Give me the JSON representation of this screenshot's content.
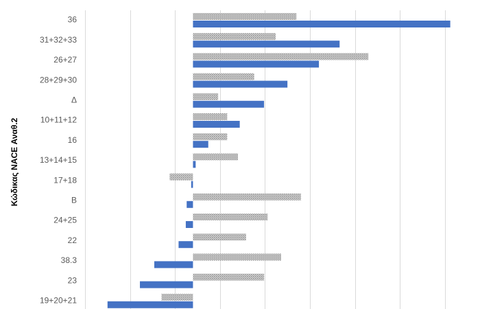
{
  "chart_data": {
    "type": "bar",
    "orientation": "horizontal",
    "ylabel": "Κώδικας NACE Αναθ.2",
    "categories": [
      "36",
      "31+32+33",
      "26+27",
      "28+29+30",
      "Δ",
      "10+11+12",
      "16",
      "13+14+15",
      "17+18",
      "Β",
      "24+25",
      "22",
      "38.3",
      "23",
      "19+20+21"
    ],
    "series": [
      {
        "pattern": "dotted",
        "color": "#a6a6a6",
        "values": [
          11.5,
          9.2,
          19.5,
          6.8,
          2.8,
          3.8,
          3.8,
          5.0,
          -2.6,
          12.0,
          8.3,
          5.9,
          9.8,
          7.9,
          -3.5
        ]
      },
      {
        "pattern": "solid",
        "color": "#4472c4",
        "values": [
          28.6,
          16.3,
          14.0,
          10.5,
          7.9,
          5.2,
          1.7,
          0.3,
          -0.2,
          -0.7,
          -0.8,
          -1.6,
          -4.3,
          -5.9,
          -9.5
        ]
      }
    ],
    "xlim": [
      -12,
      30
    ],
    "gridlines": true,
    "legend": "none"
  }
}
